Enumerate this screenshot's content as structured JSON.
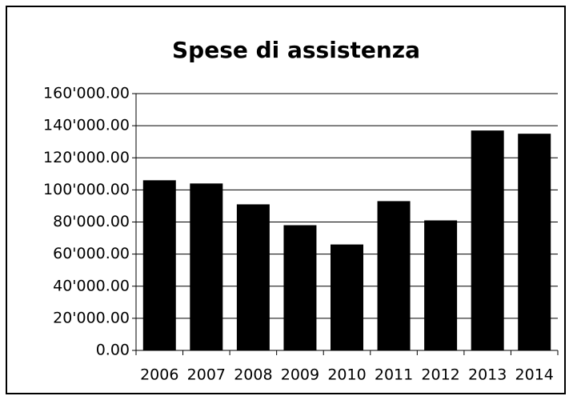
{
  "chart_data": {
    "type": "bar",
    "title": "Spese di assistenza",
    "categories": [
      "2006",
      "2007",
      "2008",
      "2009",
      "2010",
      "2011",
      "2012",
      "2013",
      "2014"
    ],
    "values": [
      106000,
      104000,
      91000,
      78000,
      66000,
      93000,
      81000,
      137000,
      135000
    ],
    "color": "#000000",
    "ylim": [
      0,
      160000
    ],
    "yticks": [
      {
        "value": 0,
        "label": "0.00"
      },
      {
        "value": 20000,
        "label": "20'000.00"
      },
      {
        "value": 40000,
        "label": "40'000.00"
      },
      {
        "value": 60000,
        "label": "60'000.00"
      },
      {
        "value": 80000,
        "label": "80'000.00"
      },
      {
        "value": 100000,
        "label": "100'000.00"
      },
      {
        "value": 120000,
        "label": "120'000.00"
      },
      {
        "value": 140000,
        "label": "140'000.00"
      },
      {
        "value": 160000,
        "label": "160'000.00"
      }
    ],
    "grid": true
  }
}
